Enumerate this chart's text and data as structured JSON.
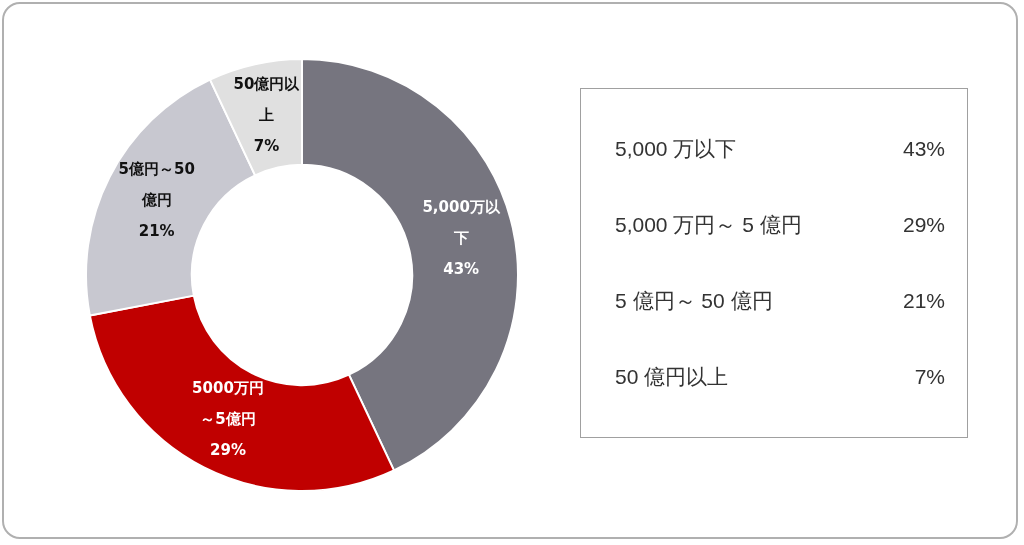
{
  "chart_data": [
    {
      "type": "donut",
      "categories": [
        "5,000万以下",
        "5000万円～5億円",
        "5億円～50億円",
        "50億円以上"
      ],
      "values": [
        43,
        29,
        21,
        7
      ],
      "colors": [
        "#76757f",
        "#c00000",
        "#c8c8d0",
        "#e0e0e0"
      ],
      "value_labels": [
        "43%",
        "29%",
        "21%",
        "7%"
      ]
    },
    {
      "type": "other",
      "annotations": [
        "5,000 万以下",
        "43%",
        "5,000 万円～ 5 億円",
        "29%",
        "5 億円～ 50 億円",
        "21%",
        "50 億円以上",
        "7%"
      ]
    }
  ]
}
